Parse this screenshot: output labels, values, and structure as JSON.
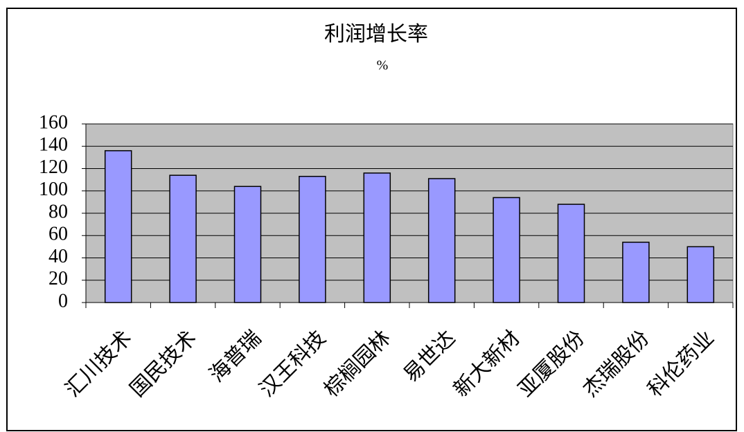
{
  "chart_data": {
    "type": "bar",
    "title": "利润增长率",
    "subtitle": "%",
    "categories": [
      "汇川技术",
      "国民技术",
      "海普瑞",
      "汉王科技",
      "棕榈园林",
      "易世达",
      "新大新材",
      "亚厦股份",
      "杰瑞股份",
      "科伦药业"
    ],
    "values": [
      136,
      114,
      104,
      113,
      116,
      111,
      94,
      88,
      54,
      50
    ],
    "color": "#9999ff",
    "ylim": [
      0,
      160
    ],
    "yticks": [
      0,
      20,
      40,
      60,
      80,
      100,
      120,
      140,
      160
    ],
    "grid": true
  }
}
